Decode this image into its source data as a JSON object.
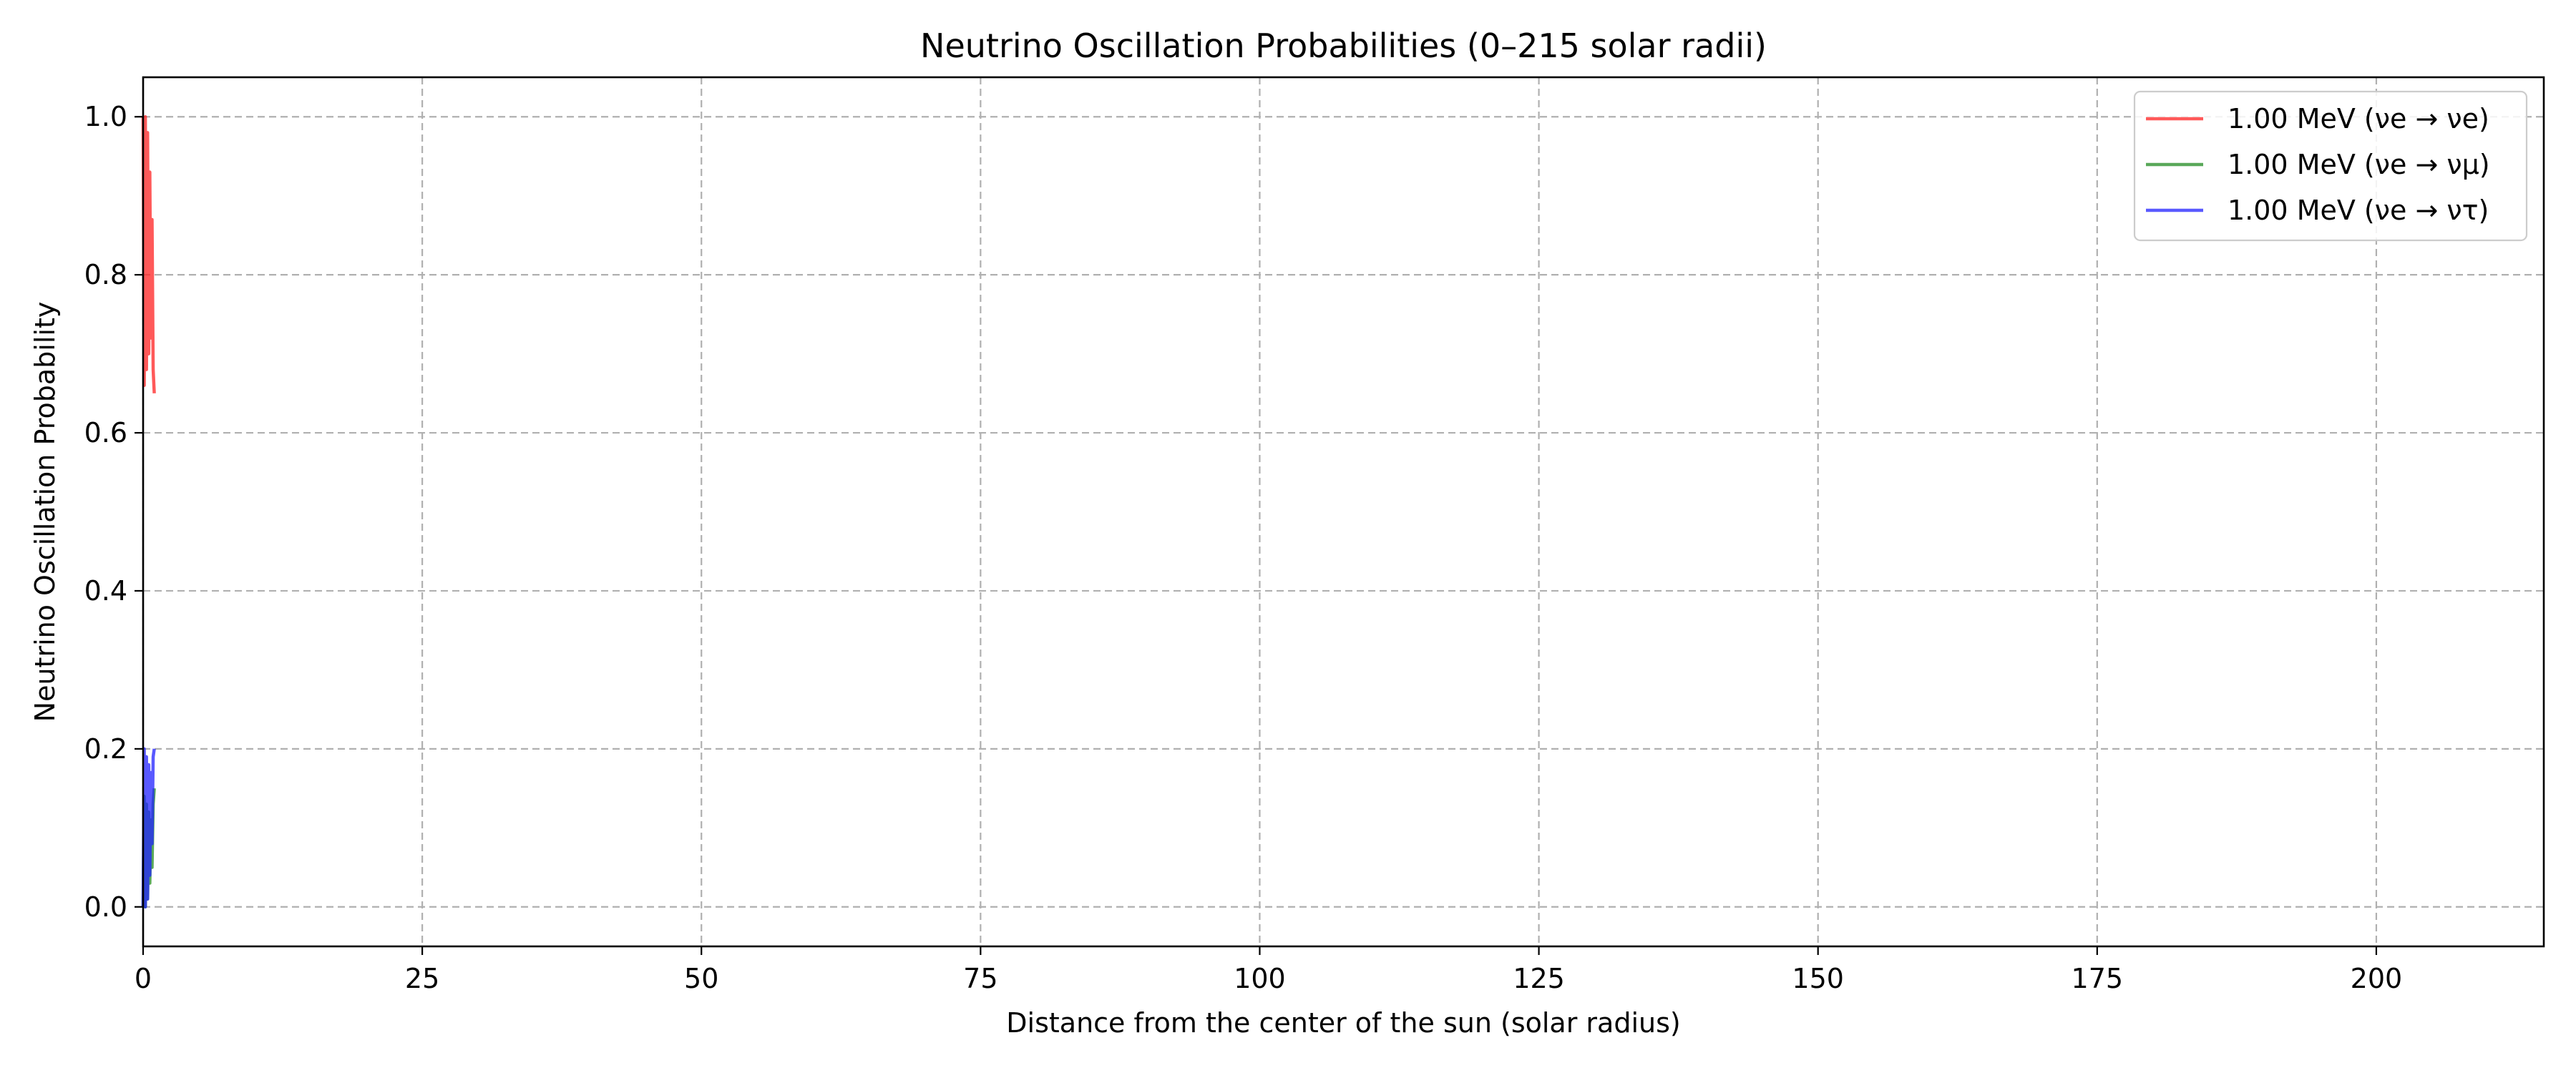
{
  "chart_data": {
    "type": "line",
    "title": "Neutrino Oscillation Probabilities (0–215 solar radii)",
    "xlabel": "Distance from the center of the sun (solar radius)",
    "ylabel": "Neutrino Oscillation Probability",
    "xlim": [
      0,
      215
    ],
    "ylim": [
      -0.05,
      1.05
    ],
    "xticks": [
      0,
      25,
      50,
      75,
      100,
      125,
      150,
      175,
      200
    ],
    "yticks": [
      0.0,
      0.2,
      0.4,
      0.6,
      0.8,
      1.0
    ],
    "xtick_labels": [
      "0",
      "25",
      "50",
      "75",
      "100",
      "125",
      "150",
      "175",
      "200"
    ],
    "ytick_labels": [
      "0.0",
      "0.2",
      "0.4",
      "0.6",
      "0.8",
      "1.0"
    ],
    "grid": true,
    "legend_position": "top-right",
    "series": [
      {
        "name": "1.00 MeV (νe → νe)",
        "color": "#ff2222",
        "x": [
          0,
          0.1,
          0.2,
          0.3,
          0.4,
          0.5,
          0.6,
          0.7,
          0.8,
          0.9,
          1.0
        ],
        "y": [
          1.0,
          0.66,
          1.0,
          0.68,
          0.98,
          0.7,
          0.93,
          0.72,
          0.87,
          0.68,
          0.65
        ]
      },
      {
        "name": "1.00 MeV (νe → νμ)",
        "color": "#228b22",
        "x": [
          0,
          0.1,
          0.2,
          0.3,
          0.4,
          0.5,
          0.6,
          0.7,
          0.8,
          0.9,
          1.0
        ],
        "y": [
          0.0,
          0.14,
          0.0,
          0.13,
          0.01,
          0.12,
          0.03,
          0.11,
          0.05,
          0.13,
          0.15
        ]
      },
      {
        "name": "1.00 MeV (νe → ντ)",
        "color": "#2222ff",
        "x": [
          0,
          0.1,
          0.2,
          0.3,
          0.4,
          0.5,
          0.6,
          0.7,
          0.8,
          0.9,
          1.0
        ],
        "y": [
          0.0,
          0.2,
          0.0,
          0.19,
          0.01,
          0.18,
          0.04,
          0.17,
          0.08,
          0.19,
          0.2
        ]
      }
    ]
  }
}
